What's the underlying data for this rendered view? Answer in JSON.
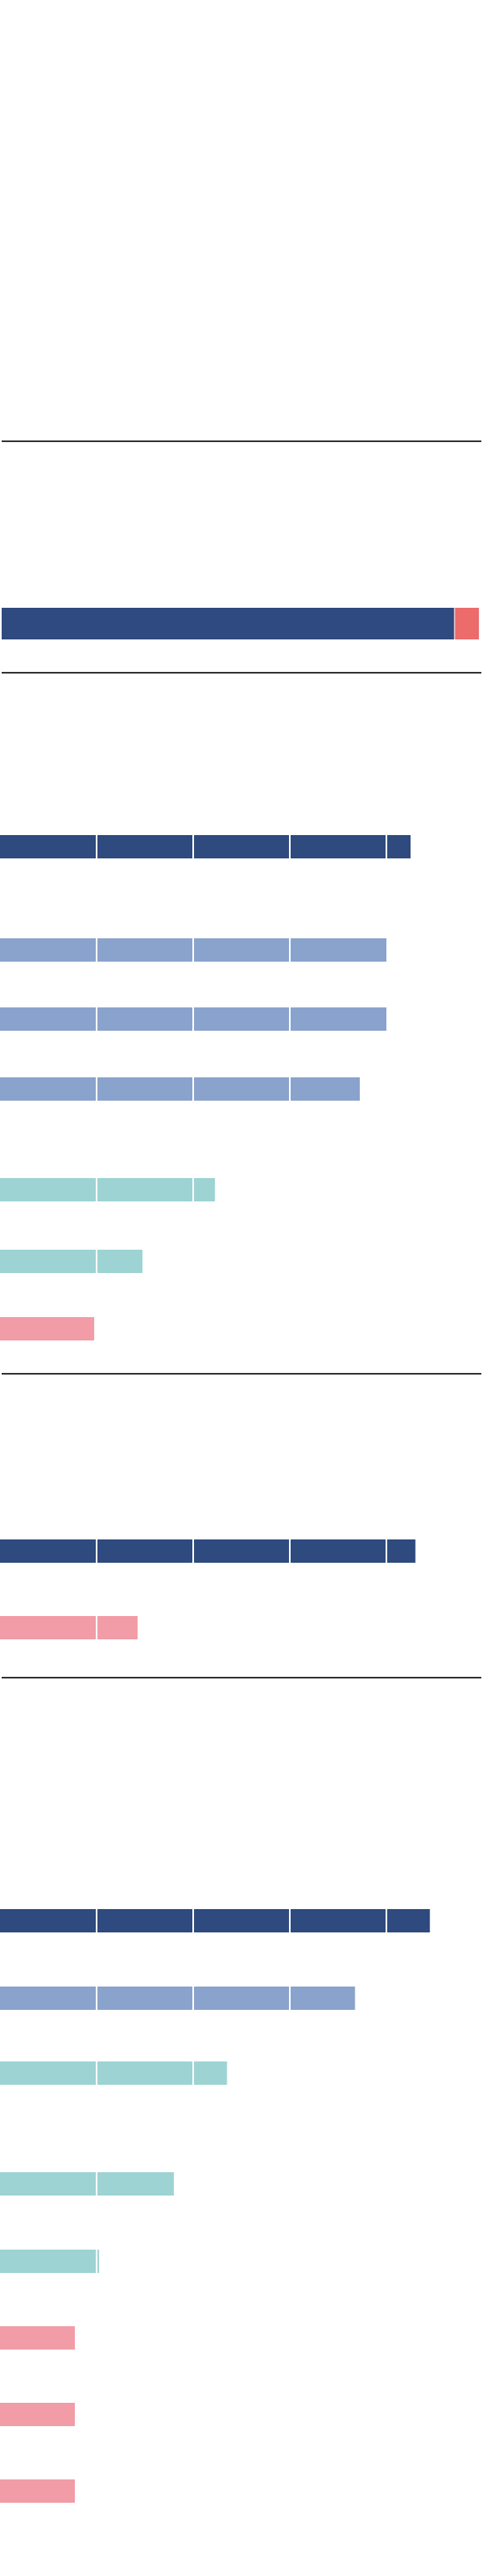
{
  "colors": {
    "dark_navy": "#2e4a7e",
    "mid_blue": "#8aa3cc",
    "teal": "#9dd3d3",
    "pink": "#f19ca6",
    "red": "#ec6b6b",
    "divider": "#333333",
    "gridline": "#ffffff"
  },
  "chart_data": [
    {
      "type": "bar",
      "orientation": "horizontal",
      "stacked": true,
      "series": [
        {
          "name": "",
          "color": "dark_navy",
          "values": [
            94.5
          ]
        },
        {
          "name": "",
          "color": "red",
          "values": [
            5.0
          ]
        }
      ],
      "xlim": [
        0,
        100
      ]
    },
    {
      "type": "bar",
      "orientation": "horizontal",
      "xlim": [
        0,
        100
      ],
      "gridlines": [
        20,
        40,
        60,
        80
      ],
      "values": [
        85,
        80,
        80,
        74.5,
        44.5,
        29.5,
        19.5
      ],
      "colors": [
        "dark_navy",
        "mid_blue",
        "mid_blue",
        "mid_blue",
        "teal",
        "teal",
        "pink"
      ]
    },
    {
      "type": "bar",
      "orientation": "horizontal",
      "xlim": [
        0,
        100
      ],
      "gridlines": [
        20,
        40,
        60,
        80
      ],
      "values": [
        86,
        28.5
      ],
      "colors": [
        "dark_navy",
        "pink"
      ]
    },
    {
      "type": "bar",
      "orientation": "horizontal",
      "xlim": [
        0,
        100
      ],
      "gridlines": [
        20,
        40,
        60,
        80
      ],
      "values": [
        89,
        73.5,
        47,
        36,
        20.5,
        15.5,
        15.5,
        15.5
      ],
      "colors": [
        "dark_navy",
        "mid_blue",
        "teal",
        "teal",
        "teal",
        "pink",
        "pink",
        "pink"
      ]
    }
  ]
}
